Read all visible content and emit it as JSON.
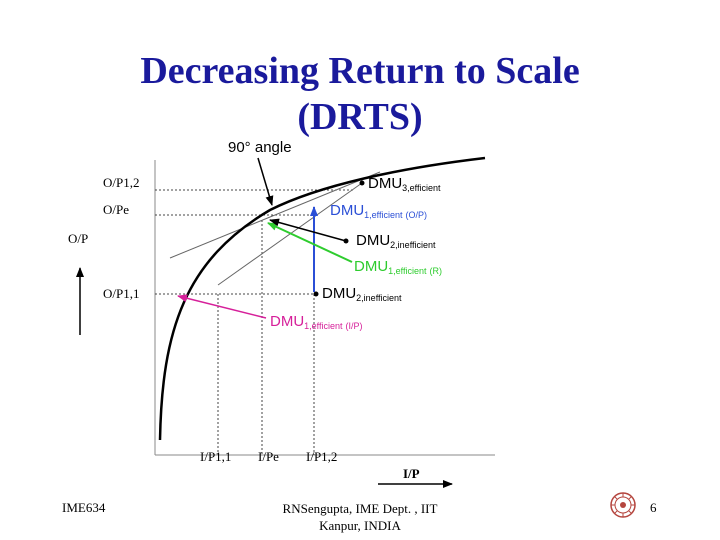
{
  "slide": {
    "title_line1": "Decreasing Return to Scale",
    "title_line2": "(DRTS)",
    "footer_left": "IME634",
    "footer_mid_line1": "RNSengupta, IME Dept. , IIT",
    "footer_mid_line2": "Kanpur, INDIA",
    "page_number": "6"
  },
  "diagram": {
    "angle_label": "90° angle",
    "y_axis_label": "O/P",
    "x_axis_label": "I/P",
    "y_ticks": {
      "op12": "O/P1,2",
      "ope": "O/Pe",
      "op11": "O/P1,1"
    },
    "x_ticks": {
      "ip11": "I/P1,1",
      "ipe": "I/Pe",
      "ip12": "I/P1,2"
    },
    "points": {
      "dmu3": {
        "main": "DMU",
        "sub": "3,efficient",
        "suffix": ""
      },
      "dmu1_op": {
        "main": "DMU",
        "sub": "1,efficient",
        "suffix": "(O/P)"
      },
      "dmu2_a": {
        "main": "DMU",
        "sub": "2,inefficient",
        "suffix": ""
      },
      "dmu1_r": {
        "main": "DMU",
        "sub": "1,efficient",
        "suffix": "(R)"
      },
      "dmu2_b": {
        "main": "DMU",
        "sub": "2,inefficient",
        "suffix": ""
      },
      "dmu1_ip": {
        "main": "DMU",
        "sub": "1,efficient",
        "suffix": "(I/P)"
      }
    },
    "colors": {
      "blue": "#2b4fd6",
      "green": "#2ecc2e",
      "magenta": "#d6209a",
      "title": "#1a1a9c",
      "logo": "#b5463f"
    }
  }
}
